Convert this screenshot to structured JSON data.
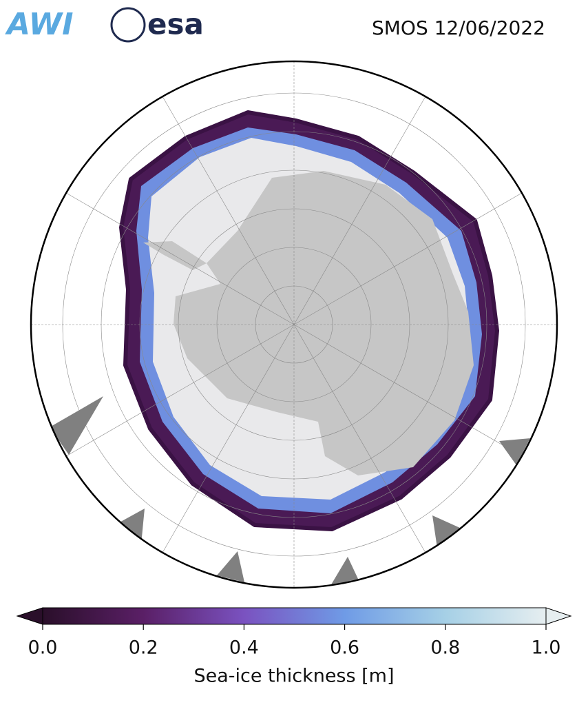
{
  "header": {
    "logos": [
      "AWI",
      "esa"
    ],
    "title": "SMOS 12/06/2022"
  },
  "colorbar": {
    "label": "Sea-ice thickness [m]",
    "lim": [
      0,
      1
    ],
    "ticks": [
      {
        "value": 0,
        "label": "0.0"
      },
      0.2,
      0.4,
      0.6,
      0.8,
      {
        "value": 1,
        "label": "1.0"
      }
    ],
    "colors": [
      "#2a0f2a",
      "#5a1f66",
      "#7a52c0",
      "#6f9be6",
      "#a6d0e6",
      "#e6eef0"
    ]
  }
}
